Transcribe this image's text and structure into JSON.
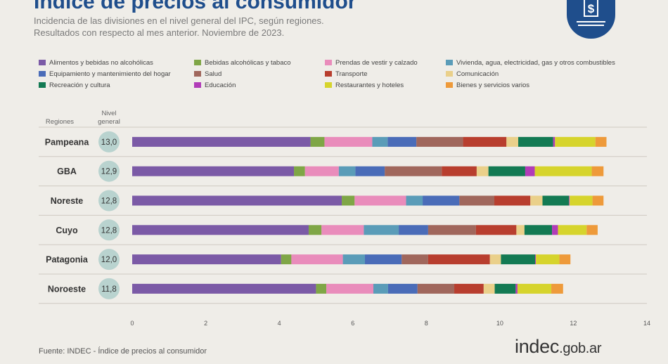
{
  "header": {
    "title": "Índice de precios al consumidor",
    "subtitle_line1": "Incidencia de las divisiones en el nivel general del IPC, según regiones.",
    "subtitle_line2": "Resultados con respecto al mes anterior. Noviembre de 2023."
  },
  "icon": "dollar-document-icon",
  "column_headers": {
    "regions": "Regiones",
    "level_line1": "Nivel",
    "level_line2": "general"
  },
  "footer": {
    "source": "Fuente: INDEC - Índice de precios al consumidor",
    "brand_main": "indec",
    "brand_domain": ".gob.ar"
  },
  "chart_data": {
    "type": "bar",
    "orientation": "horizontal",
    "stacked": true,
    "xlim": [
      0,
      14
    ],
    "xticks": [
      "0",
      "2",
      "4",
      "6",
      "8",
      "10",
      "12",
      "14"
    ],
    "grid": false,
    "legend_position": "top",
    "categories": [
      "Pampeana",
      "GBA",
      "Noreste",
      "Cuyo",
      "Patagonia",
      "Noroeste"
    ],
    "levels": [
      "13,0",
      "12,9",
      "12,8",
      "12,8",
      "12,0",
      "11,8"
    ],
    "series": [
      {
        "name": "Alimentos y bebidas no alcohólicas",
        "color": "#7b5aa6",
        "values": [
          4.85,
          4.4,
          5.7,
          4.8,
          4.05,
          5.0
        ]
      },
      {
        "name": "Bebidas alcohólicas y tabaco",
        "color": "#7fa646",
        "values": [
          0.38,
          0.3,
          0.35,
          0.35,
          0.28,
          0.28
        ]
      },
      {
        "name": "Prendas de vestir y calzado",
        "color": "#e98cbb",
        "values": [
          1.3,
          0.92,
          1.4,
          1.15,
          1.4,
          1.28
        ]
      },
      {
        "name": "Vivienda, agua, electricidad, gas y otros combustibles",
        "color": "#5a9cb8",
        "values": [
          0.42,
          0.45,
          0.45,
          0.95,
          0.6,
          0.4
        ]
      },
      {
        "name": "Equipamiento y mantenimiento del hogar",
        "color": "#4a6cb8",
        "values": [
          0.78,
          0.8,
          1.0,
          0.8,
          1.0,
          0.8
        ]
      },
      {
        "name": "Salud",
        "color": "#a0675c",
        "values": [
          1.27,
          1.55,
          0.95,
          1.3,
          0.72,
          1.0
        ]
      },
      {
        "name": "Transporte",
        "color": "#b83e2e",
        "values": [
          1.18,
          0.95,
          0.98,
          1.1,
          1.68,
          0.8
        ]
      },
      {
        "name": "Comunicación",
        "color": "#ead08a",
        "values": [
          0.32,
          0.32,
          0.33,
          0.22,
          0.3,
          0.3
        ]
      },
      {
        "name": "Recreación y cultura",
        "color": "#137a53",
        "values": [
          0.95,
          1.0,
          0.72,
          0.75,
          0.93,
          0.57
        ]
      },
      {
        "name": "Educación",
        "color": "#b13cb8",
        "values": [
          0.05,
          0.26,
          0.02,
          0.16,
          0.02,
          0.05
        ]
      },
      {
        "name": "Restaurantes y hoteles",
        "color": "#d6d42c",
        "values": [
          1.1,
          1.55,
          0.62,
          0.78,
          0.64,
          0.92
        ]
      },
      {
        "name": "Bienes y servicios varios",
        "color": "#ee9a3a",
        "values": [
          0.3,
          0.32,
          0.3,
          0.3,
          0.3,
          0.32
        ]
      }
    ]
  }
}
